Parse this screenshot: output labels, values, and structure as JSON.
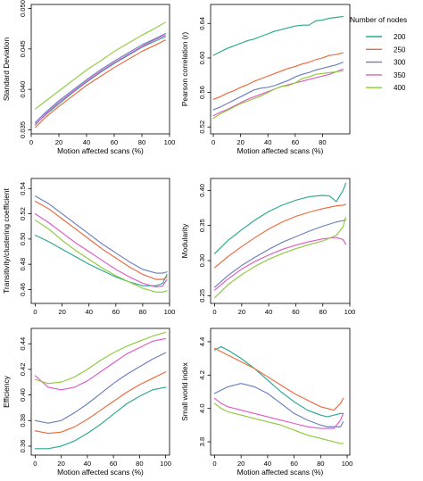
{
  "legend": {
    "title": "Number of nodes",
    "entries": [
      {
        "label": "200",
        "color": "#2aa88f"
      },
      {
        "label": "250",
        "color": "#ea6a3c"
      },
      {
        "label": "300",
        "color": "#6a7fbd"
      },
      {
        "label": "350",
        "color": "#dd5ac9"
      },
      {
        "label": "400",
        "color": "#8dcb3c"
      }
    ]
  },
  "chart_data": [
    {
      "type": "line",
      "xlabel": "Motion affected scans (%)",
      "ylabel": "Standard Deviation",
      "xlim": [
        0,
        100
      ],
      "xticks": [
        0,
        20,
        40,
        60,
        80,
        100
      ],
      "ylim": [
        0.0345,
        0.0505
      ],
      "yticks": [
        0.035,
        0.04,
        0.045,
        0.05
      ],
      "yticklabels": [
        "0.035",
        "0.040",
        "0.045",
        "0.050"
      ],
      "x": [
        3,
        10,
        20,
        30,
        40,
        50,
        60,
        70,
        80,
        90,
        97
      ],
      "series": [
        {
          "name": "200",
          "values": [
            0.0357,
            0.0368,
            0.0382,
            0.0396,
            0.0409,
            0.0421,
            0.0432,
            0.0442,
            0.0452,
            0.046,
            0.0465
          ]
        },
        {
          "name": "250",
          "values": [
            0.0353,
            0.0365,
            0.0379,
            0.0392,
            0.0405,
            0.0416,
            0.0427,
            0.0437,
            0.0447,
            0.0455,
            0.0461
          ]
        },
        {
          "name": "300",
          "values": [
            0.0359,
            0.0371,
            0.0386,
            0.0399,
            0.0412,
            0.0424,
            0.0435,
            0.0445,
            0.0455,
            0.0463,
            0.0469
          ]
        },
        {
          "name": "350",
          "values": [
            0.0356,
            0.0369,
            0.0384,
            0.0397,
            0.041,
            0.0422,
            0.0433,
            0.0443,
            0.0453,
            0.0462,
            0.0467
          ]
        },
        {
          "name": "400",
          "values": [
            0.0376,
            0.0385,
            0.0398,
            0.0411,
            0.0424,
            0.0435,
            0.0447,
            0.0457,
            0.0467,
            0.0476,
            0.0483
          ]
        }
      ]
    },
    {
      "type": "line",
      "xlabel": "Motion affected scans (%)",
      "ylabel": "Pearson correlation (r)",
      "xlim": [
        -2,
        100
      ],
      "xticks": [
        0,
        20,
        40,
        60,
        80
      ],
      "ylim": [
        0.512,
        0.662
      ],
      "yticks": [
        0.52,
        0.56,
        0.6,
        0.64
      ],
      "yticklabels": [
        "0.52",
        "0.56",
        "0.60",
        "0.64"
      ],
      "x": [
        0,
        5,
        10,
        15,
        20,
        25,
        30,
        35,
        40,
        45,
        50,
        55,
        60,
        65,
        70,
        75,
        80,
        85,
        90,
        95
      ],
      "series": [
        {
          "name": "200",
          "values": [
            0.603,
            0.607,
            0.611,
            0.614,
            0.617,
            0.62,
            0.622,
            0.625,
            0.628,
            0.631,
            0.633,
            0.635,
            0.637,
            0.638,
            0.638,
            0.643,
            0.644,
            0.646,
            0.647,
            0.648
          ]
        },
        {
          "name": "250",
          "values": [
            0.552,
            0.555,
            0.559,
            0.562,
            0.566,
            0.569,
            0.573,
            0.576,
            0.579,
            0.582,
            0.585,
            0.588,
            0.59,
            0.593,
            0.595,
            0.598,
            0.6,
            0.603,
            0.604,
            0.606
          ]
        },
        {
          "name": "300",
          "values": [
            0.54,
            0.543,
            0.547,
            0.551,
            0.555,
            0.559,
            0.563,
            0.565,
            0.566,
            0.568,
            0.571,
            0.574,
            0.578,
            0.581,
            0.583,
            0.586,
            0.588,
            0.59,
            0.592,
            0.595
          ]
        },
        {
          "name": "350",
          "values": [
            0.533,
            0.537,
            0.54,
            0.544,
            0.548,
            0.552,
            0.555,
            0.558,
            0.561,
            0.564,
            0.567,
            0.569,
            0.571,
            0.573,
            0.575,
            0.577,
            0.579,
            0.581,
            0.584,
            0.587
          ]
        },
        {
          "name": "400",
          "values": [
            0.53,
            0.535,
            0.539,
            0.543,
            0.547,
            0.55,
            0.553,
            0.556,
            0.56,
            0.564,
            0.567,
            0.568,
            0.571,
            0.576,
            0.578,
            0.581,
            0.582,
            0.583,
            0.584,
            0.585
          ]
        }
      ]
    },
    {
      "type": "line",
      "xlabel": "",
      "ylabel": "Transitivity/clustering coefficient",
      "xlim": [
        -3,
        100
      ],
      "xticks": [
        0,
        20,
        40,
        60,
        80,
        100
      ],
      "ylim": [
        0.449,
        0.548
      ],
      "yticks": [
        0.46,
        0.48,
        0.5,
        0.52,
        0.54
      ],
      "yticklabels": [
        "0.46",
        "0.48",
        "0.50",
        "0.52",
        "0.54"
      ],
      "x": [
        0,
        10,
        20,
        30,
        40,
        50,
        60,
        70,
        80,
        90,
        95,
        98
      ],
      "series": [
        {
          "name": "200",
          "values": [
            0.503,
            0.498,
            0.492,
            0.486,
            0.48,
            0.475,
            0.47,
            0.466,
            0.463,
            0.463,
            0.465,
            0.472
          ]
        },
        {
          "name": "250",
          "values": [
            0.53,
            0.524,
            0.516,
            0.508,
            0.5,
            0.492,
            0.485,
            0.478,
            0.472,
            0.468,
            0.468,
            0.47
          ]
        },
        {
          "name": "300",
          "values": [
            0.534,
            0.528,
            0.52,
            0.512,
            0.504,
            0.496,
            0.489,
            0.482,
            0.476,
            0.473,
            0.473,
            0.474
          ]
        },
        {
          "name": "350",
          "values": [
            0.52,
            0.513,
            0.505,
            0.497,
            0.49,
            0.483,
            0.476,
            0.47,
            0.465,
            0.462,
            0.463,
            0.468
          ]
        },
        {
          "name": "400",
          "values": [
            0.515,
            0.508,
            0.499,
            0.491,
            0.484,
            0.477,
            0.471,
            0.466,
            0.461,
            0.458,
            0.458,
            0.459
          ]
        }
      ]
    },
    {
      "type": "line",
      "xlabel": "",
      "ylabel": "Modularity",
      "xlim": [
        -3,
        100
      ],
      "xticks": [
        0,
        20,
        40,
        60,
        80,
        100
      ],
      "ylim": [
        0.239,
        0.417
      ],
      "yticks": [
        0.25,
        0.3,
        0.35,
        0.4
      ],
      "yticklabels": [
        "0.25",
        "0.30",
        "0.35",
        "0.40"
      ],
      "x": [
        0,
        10,
        20,
        30,
        40,
        50,
        60,
        70,
        80,
        85,
        90,
        95,
        97
      ],
      "series": [
        {
          "name": "200",
          "values": [
            0.31,
            0.329,
            0.344,
            0.358,
            0.37,
            0.379,
            0.386,
            0.391,
            0.393,
            0.392,
            0.384,
            0.4,
            0.41
          ]
        },
        {
          "name": "250",
          "values": [
            0.29,
            0.306,
            0.32,
            0.333,
            0.345,
            0.355,
            0.363,
            0.369,
            0.374,
            0.376,
            0.378,
            0.379,
            0.38
          ]
        },
        {
          "name": "300",
          "values": [
            0.262,
            0.279,
            0.293,
            0.305,
            0.316,
            0.326,
            0.334,
            0.342,
            0.349,
            0.352,
            0.355,
            0.357,
            0.358
          ]
        },
        {
          "name": "350",
          "values": [
            0.258,
            0.274,
            0.288,
            0.299,
            0.308,
            0.316,
            0.322,
            0.327,
            0.331,
            0.332,
            0.333,
            0.33,
            0.323
          ]
        },
        {
          "name": "400",
          "values": [
            0.247,
            0.266,
            0.28,
            0.292,
            0.302,
            0.31,
            0.317,
            0.323,
            0.328,
            0.332,
            0.336,
            0.348,
            0.362
          ]
        }
      ]
    },
    {
      "type": "line",
      "xlabel": "Motion affected scans (%)",
      "ylabel": "Efficiency",
      "xlim": [
        -3,
        103
      ],
      "xticks": [
        0,
        20,
        40,
        60,
        80,
        100
      ],
      "ylim": [
        0.353,
        0.452
      ],
      "yticks": [
        0.36,
        0.38,
        0.4,
        0.42,
        0.44
      ],
      "yticklabels": [
        "0.36",
        "0.38",
        "0.40",
        "0.42",
        "0.44"
      ],
      "x": [
        0,
        10,
        20,
        30,
        40,
        50,
        60,
        70,
        80,
        90,
        100
      ],
      "series": [
        {
          "name": "200",
          "values": [
            0.358,
            0.358,
            0.36,
            0.364,
            0.37,
            0.377,
            0.385,
            0.393,
            0.399,
            0.404,
            0.406
          ]
        },
        {
          "name": "250",
          "values": [
            0.372,
            0.37,
            0.371,
            0.375,
            0.381,
            0.388,
            0.395,
            0.402,
            0.408,
            0.413,
            0.418
          ]
        },
        {
          "name": "300",
          "values": [
            0.38,
            0.378,
            0.38,
            0.386,
            0.393,
            0.401,
            0.409,
            0.416,
            0.422,
            0.428,
            0.433
          ]
        },
        {
          "name": "350",
          "values": [
            0.415,
            0.406,
            0.404,
            0.406,
            0.411,
            0.418,
            0.425,
            0.432,
            0.437,
            0.442,
            0.444
          ]
        },
        {
          "name": "400",
          "values": [
            0.412,
            0.409,
            0.41,
            0.414,
            0.42,
            0.427,
            0.433,
            0.438,
            0.442,
            0.446,
            0.449
          ]
        }
      ]
    },
    {
      "type": "line",
      "xlabel": "Motion affected scans (%)",
      "ylabel": "Small world index",
      "xlim": [
        -3,
        102
      ],
      "xticks": [
        0,
        20,
        40,
        60,
        80,
        100
      ],
      "ylim": [
        3.72,
        4.48
      ],
      "yticks": [
        3.8,
        4.0,
        4.2,
        4.4
      ],
      "yticklabels": [
        "3.8",
        "4.0",
        "4.2",
        "4.4"
      ],
      "x": [
        0,
        5,
        10,
        20,
        30,
        40,
        50,
        60,
        70,
        80,
        85,
        90,
        95,
        97
      ],
      "series": [
        {
          "name": "200",
          "values": [
            4.35,
            4.37,
            4.35,
            4.3,
            4.24,
            4.17,
            4.1,
            4.04,
            3.99,
            3.96,
            3.95,
            3.96,
            3.97,
            3.97
          ]
        },
        {
          "name": "250",
          "values": [
            4.36,
            4.34,
            4.32,
            4.28,
            4.24,
            4.19,
            4.14,
            4.09,
            4.05,
            4.01,
            4.0,
            3.99,
            4.03,
            4.06
          ]
        },
        {
          "name": "300",
          "values": [
            4.09,
            4.11,
            4.13,
            4.15,
            4.13,
            4.09,
            4.03,
            3.97,
            3.93,
            3.9,
            3.89,
            3.89,
            3.89,
            3.92
          ]
        },
        {
          "name": "350",
          "values": [
            4.06,
            4.03,
            4.01,
            3.99,
            3.97,
            3.95,
            3.93,
            3.91,
            3.89,
            3.88,
            3.88,
            3.88,
            3.93,
            3.97
          ]
        },
        {
          "name": "400",
          "values": [
            4.03,
            4.0,
            3.98,
            3.96,
            3.94,
            3.92,
            3.9,
            3.87,
            3.84,
            3.82,
            3.81,
            3.8,
            3.79,
            3.79
          ]
        }
      ]
    }
  ]
}
